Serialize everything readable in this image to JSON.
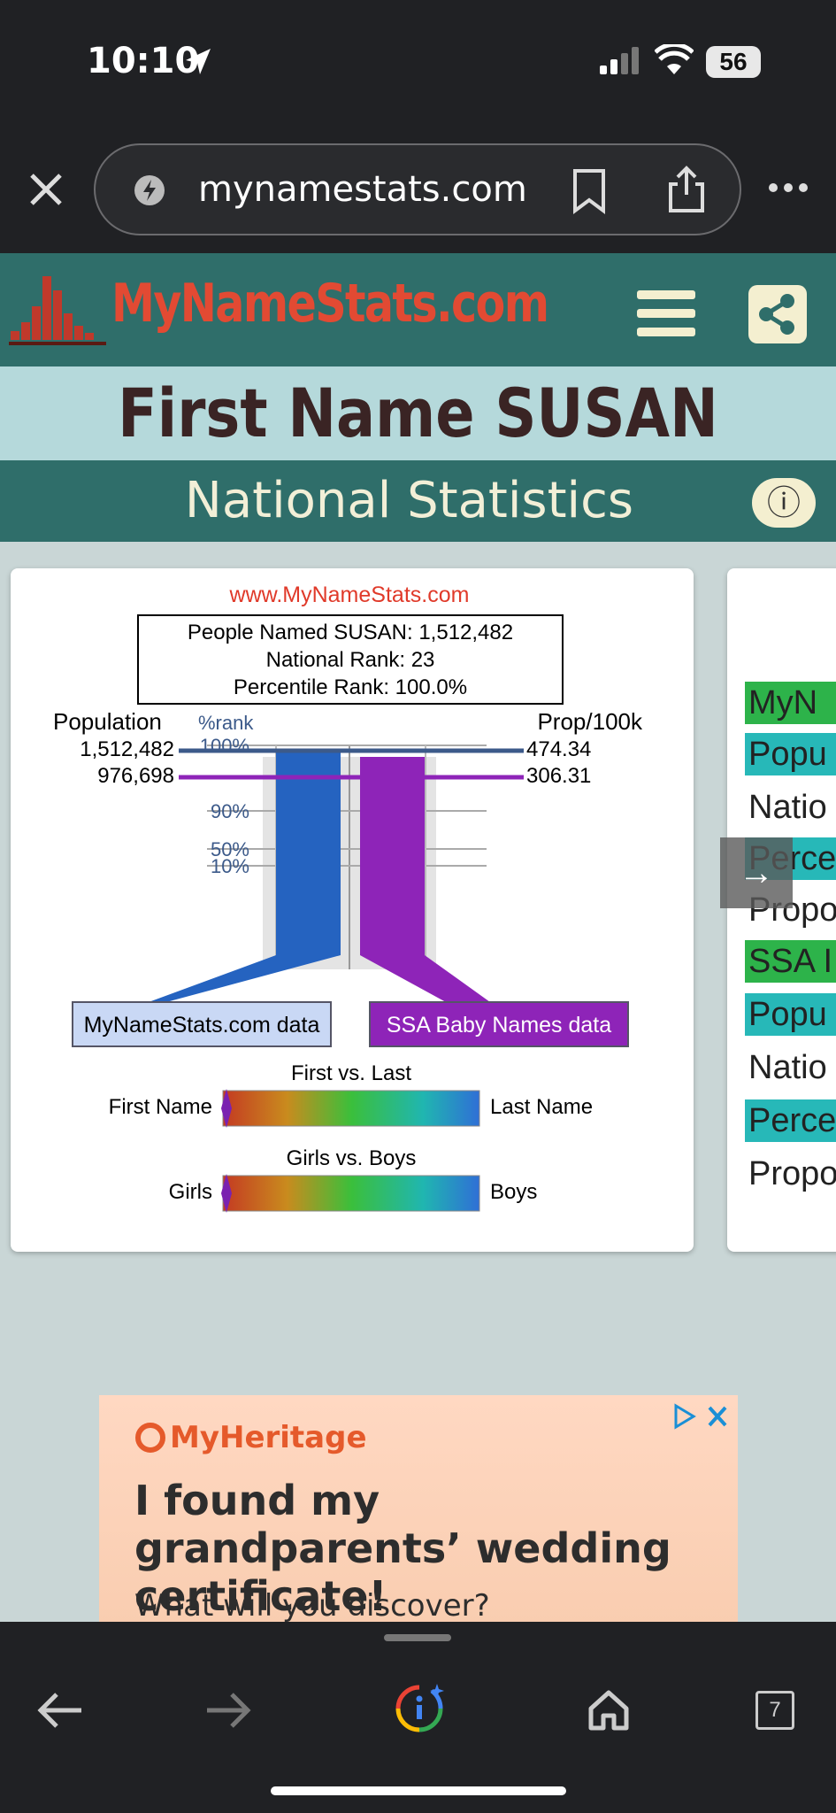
{
  "status_bar": {
    "time": "10:10",
    "battery": "56"
  },
  "browser": {
    "url": "mynamestats.com",
    "tab_count": "7"
  },
  "site": {
    "logo": "MyNameStats.com",
    "title": "First Name SUSAN",
    "section": "National Statistics"
  },
  "chart_data": {
    "type": "bar",
    "watermark": "www.MyNameStats.com",
    "summary": [
      "People Named SUSAN: 1,512,482",
      "National Rank: 23",
      "Percentile Rank: 100.0%"
    ],
    "left_axis_label": "Population",
    "rank_axis_label": "%rank",
    "right_axis_label": "Prop/100k",
    "rank_ticks": [
      "100%",
      "90%",
      "50%",
      "10%"
    ],
    "series": [
      {
        "name": "MyNameStats.com data",
        "population": "1,512,482",
        "prop": "474.34",
        "percentile": 100.0,
        "color": "#2563c0"
      },
      {
        "name": "SSA Baby Names data",
        "population": "976,698",
        "prop": "306.31",
        "percentile": 100.0,
        "color": "#8e24b8"
      }
    ],
    "first_vs_last": {
      "title": "First vs. Last",
      "left": "First Name",
      "right": "Last Name",
      "value": 0.0
    },
    "girls_vs_boys": {
      "title": "Girls vs. Boys",
      "left": "Girls",
      "right": "Boys",
      "value": 0.0
    }
  },
  "side_panel": {
    "items": [
      {
        "text": "MyN",
        "bg": "#2db34a"
      },
      {
        "text": "Popu",
        "bg": "#27b8b8"
      },
      {
        "text": "Natio",
        "bg": ""
      },
      {
        "text": "Perce",
        "bg": "#27b8b8"
      },
      {
        "text": "Propo",
        "bg": ""
      },
      {
        "text": "SSA I",
        "bg": "#2db34a"
      },
      {
        "text": "Popu",
        "bg": "#27b8b8"
      },
      {
        "text": "Natio",
        "bg": ""
      },
      {
        "text": "Perce",
        "bg": "#27b8b8"
      },
      {
        "text": "Propo",
        "bg": ""
      }
    ]
  },
  "ad": {
    "brand": "MyHeritage",
    "headline": "I found my grandparents’ wedding certificate!",
    "sub": "What will you discover?"
  }
}
